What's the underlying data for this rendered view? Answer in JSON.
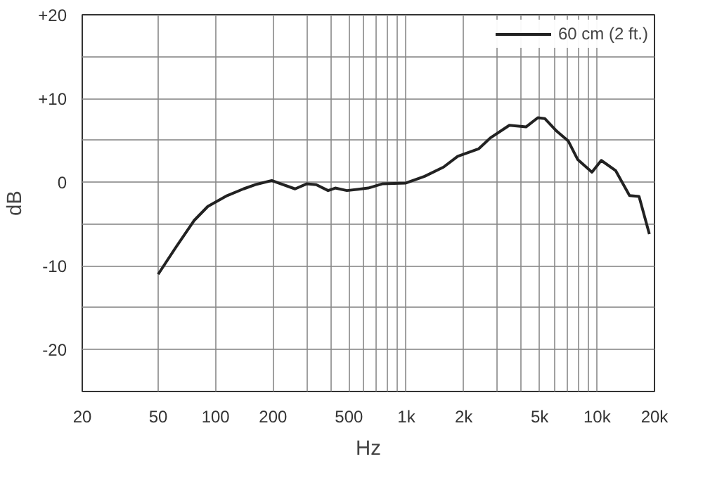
{
  "chart_data": {
    "type": "line",
    "xlabel": "Hz",
    "ylabel": "dB",
    "log": "x",
    "grid": true,
    "legend": "top right",
    "marker": "none",
    "line_style": "solid",
    "xlim": [
      20,
      20000
    ],
    "ylim": [
      -25,
      20
    ],
    "xticks": [
      20,
      50,
      100,
      200,
      {
        "value": 300,
        "label": null
      },
      {
        "value": 400,
        "label": null
      },
      500,
      {
        "value": 600,
        "label": null
      },
      {
        "value": 700,
        "label": null
      },
      {
        "value": 800,
        "label": null
      },
      {
        "value": 900,
        "label": null
      },
      {
        "value": 1000,
        "label": "1k"
      },
      {
        "value": 2000,
        "label": "2k"
      },
      {
        "value": 3000,
        "label": null
      },
      {
        "value": 4000,
        "label": null
      },
      {
        "value": 5000,
        "label": "5k"
      },
      {
        "value": 6000,
        "label": null
      },
      {
        "value": 7000,
        "label": null
      },
      {
        "value": 8000,
        "label": null
      },
      {
        "value": 9000,
        "label": null
      },
      {
        "value": 10000,
        "label": "10k"
      },
      {
        "value": 20000,
        "label": "20k"
      }
    ],
    "yticks": [
      {
        "value": -25,
        "label": null
      },
      -20,
      {
        "value": -15,
        "label": null
      },
      -10,
      {
        "value": -5,
        "label": null
      },
      0,
      {
        "value": 5,
        "label": null
      },
      {
        "value": 10,
        "label": "+10"
      },
      {
        "value": 15,
        "label": null
      },
      {
        "value": 20,
        "label": "+20"
      }
    ],
    "series": [
      {
        "name": "60 cm (2 ft.)",
        "color": "#222222",
        "x": [
          50,
          61,
          77,
          91,
          115,
          140,
          161,
          197,
          261,
          300,
          337,
          389,
          424,
          488,
          631,
          748,
          994,
          1247,
          1567,
          1860,
          2400,
          2760,
          3470,
          4240,
          4890,
          5320,
          6140,
          7070,
          7920,
          9400,
          10520,
          12500,
          14800,
          16600,
          18800
        ],
        "values": [
          -11.0,
          -8.0,
          -4.6,
          -2.9,
          -1.6,
          -0.8,
          -0.3,
          0.2,
          -0.8,
          -0.2,
          -0.3,
          -1.0,
          -0.7,
          -1.0,
          -0.7,
          -0.2,
          -0.1,
          0.7,
          1.8,
          3.1,
          4.0,
          5.3,
          6.8,
          6.6,
          7.7,
          7.6,
          6.1,
          4.9,
          2.7,
          1.2,
          2.6,
          1.4,
          -1.6,
          -1.7,
          -6.2
        ]
      }
    ]
  }
}
